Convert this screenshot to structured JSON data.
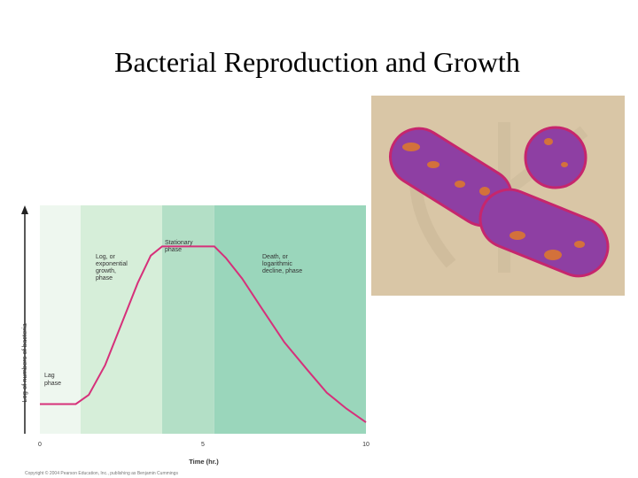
{
  "slide": {
    "title": "Bacterial Reproduction and Growth",
    "copyright": "Copyright © 2004 Pearson Education, Inc., publishing as Benjamin Cummings"
  },
  "chart_data": {
    "type": "line",
    "title": "",
    "xlabel": "Time (hr.)",
    "ylabel": "Log of numbers of bacteria",
    "xlim": [
      0,
      10
    ],
    "ylim": [
      0,
      1
    ],
    "x_ticks": [
      "0",
      "5",
      "10"
    ],
    "grid": false,
    "phases": [
      {
        "label": "Lag phase",
        "x_start": 0,
        "x_end": 1.25,
        "color": "#eef7ef"
      },
      {
        "label": "Log, or exponential growth, phase",
        "x_start": 1.25,
        "x_end": 3.75,
        "color": "#d6eed9"
      },
      {
        "label": "Stationary phase",
        "x_start": 3.75,
        "x_end": 5.35,
        "color": "#b3dfc6"
      },
      {
        "label": "Death, or logarithmic decline, phase",
        "x_start": 5.35,
        "x_end": 10,
        "color": "#9ad6bb"
      }
    ],
    "series": [
      {
        "color": "#d6307a",
        "x": [
          0,
          1.1,
          1.5,
          2.0,
          2.5,
          3.0,
          3.4,
          3.75,
          4.2,
          5.0,
          5.35,
          5.7,
          6.2,
          6.8,
          7.5,
          8.2,
          8.8,
          9.4,
          10
        ],
        "y": [
          0.13,
          0.13,
          0.17,
          0.3,
          0.48,
          0.66,
          0.78,
          0.82,
          0.82,
          0.82,
          0.82,
          0.77,
          0.68,
          0.55,
          0.4,
          0.28,
          0.18,
          0.11,
          0.05
        ]
      }
    ]
  },
  "photo": {
    "icon": "bacteria-micrograph-icon",
    "background": "#d9c6a6",
    "cell_color": "#8e3fa3",
    "membrane_color": "#c6266d",
    "spot_color": "#e07a2a"
  }
}
